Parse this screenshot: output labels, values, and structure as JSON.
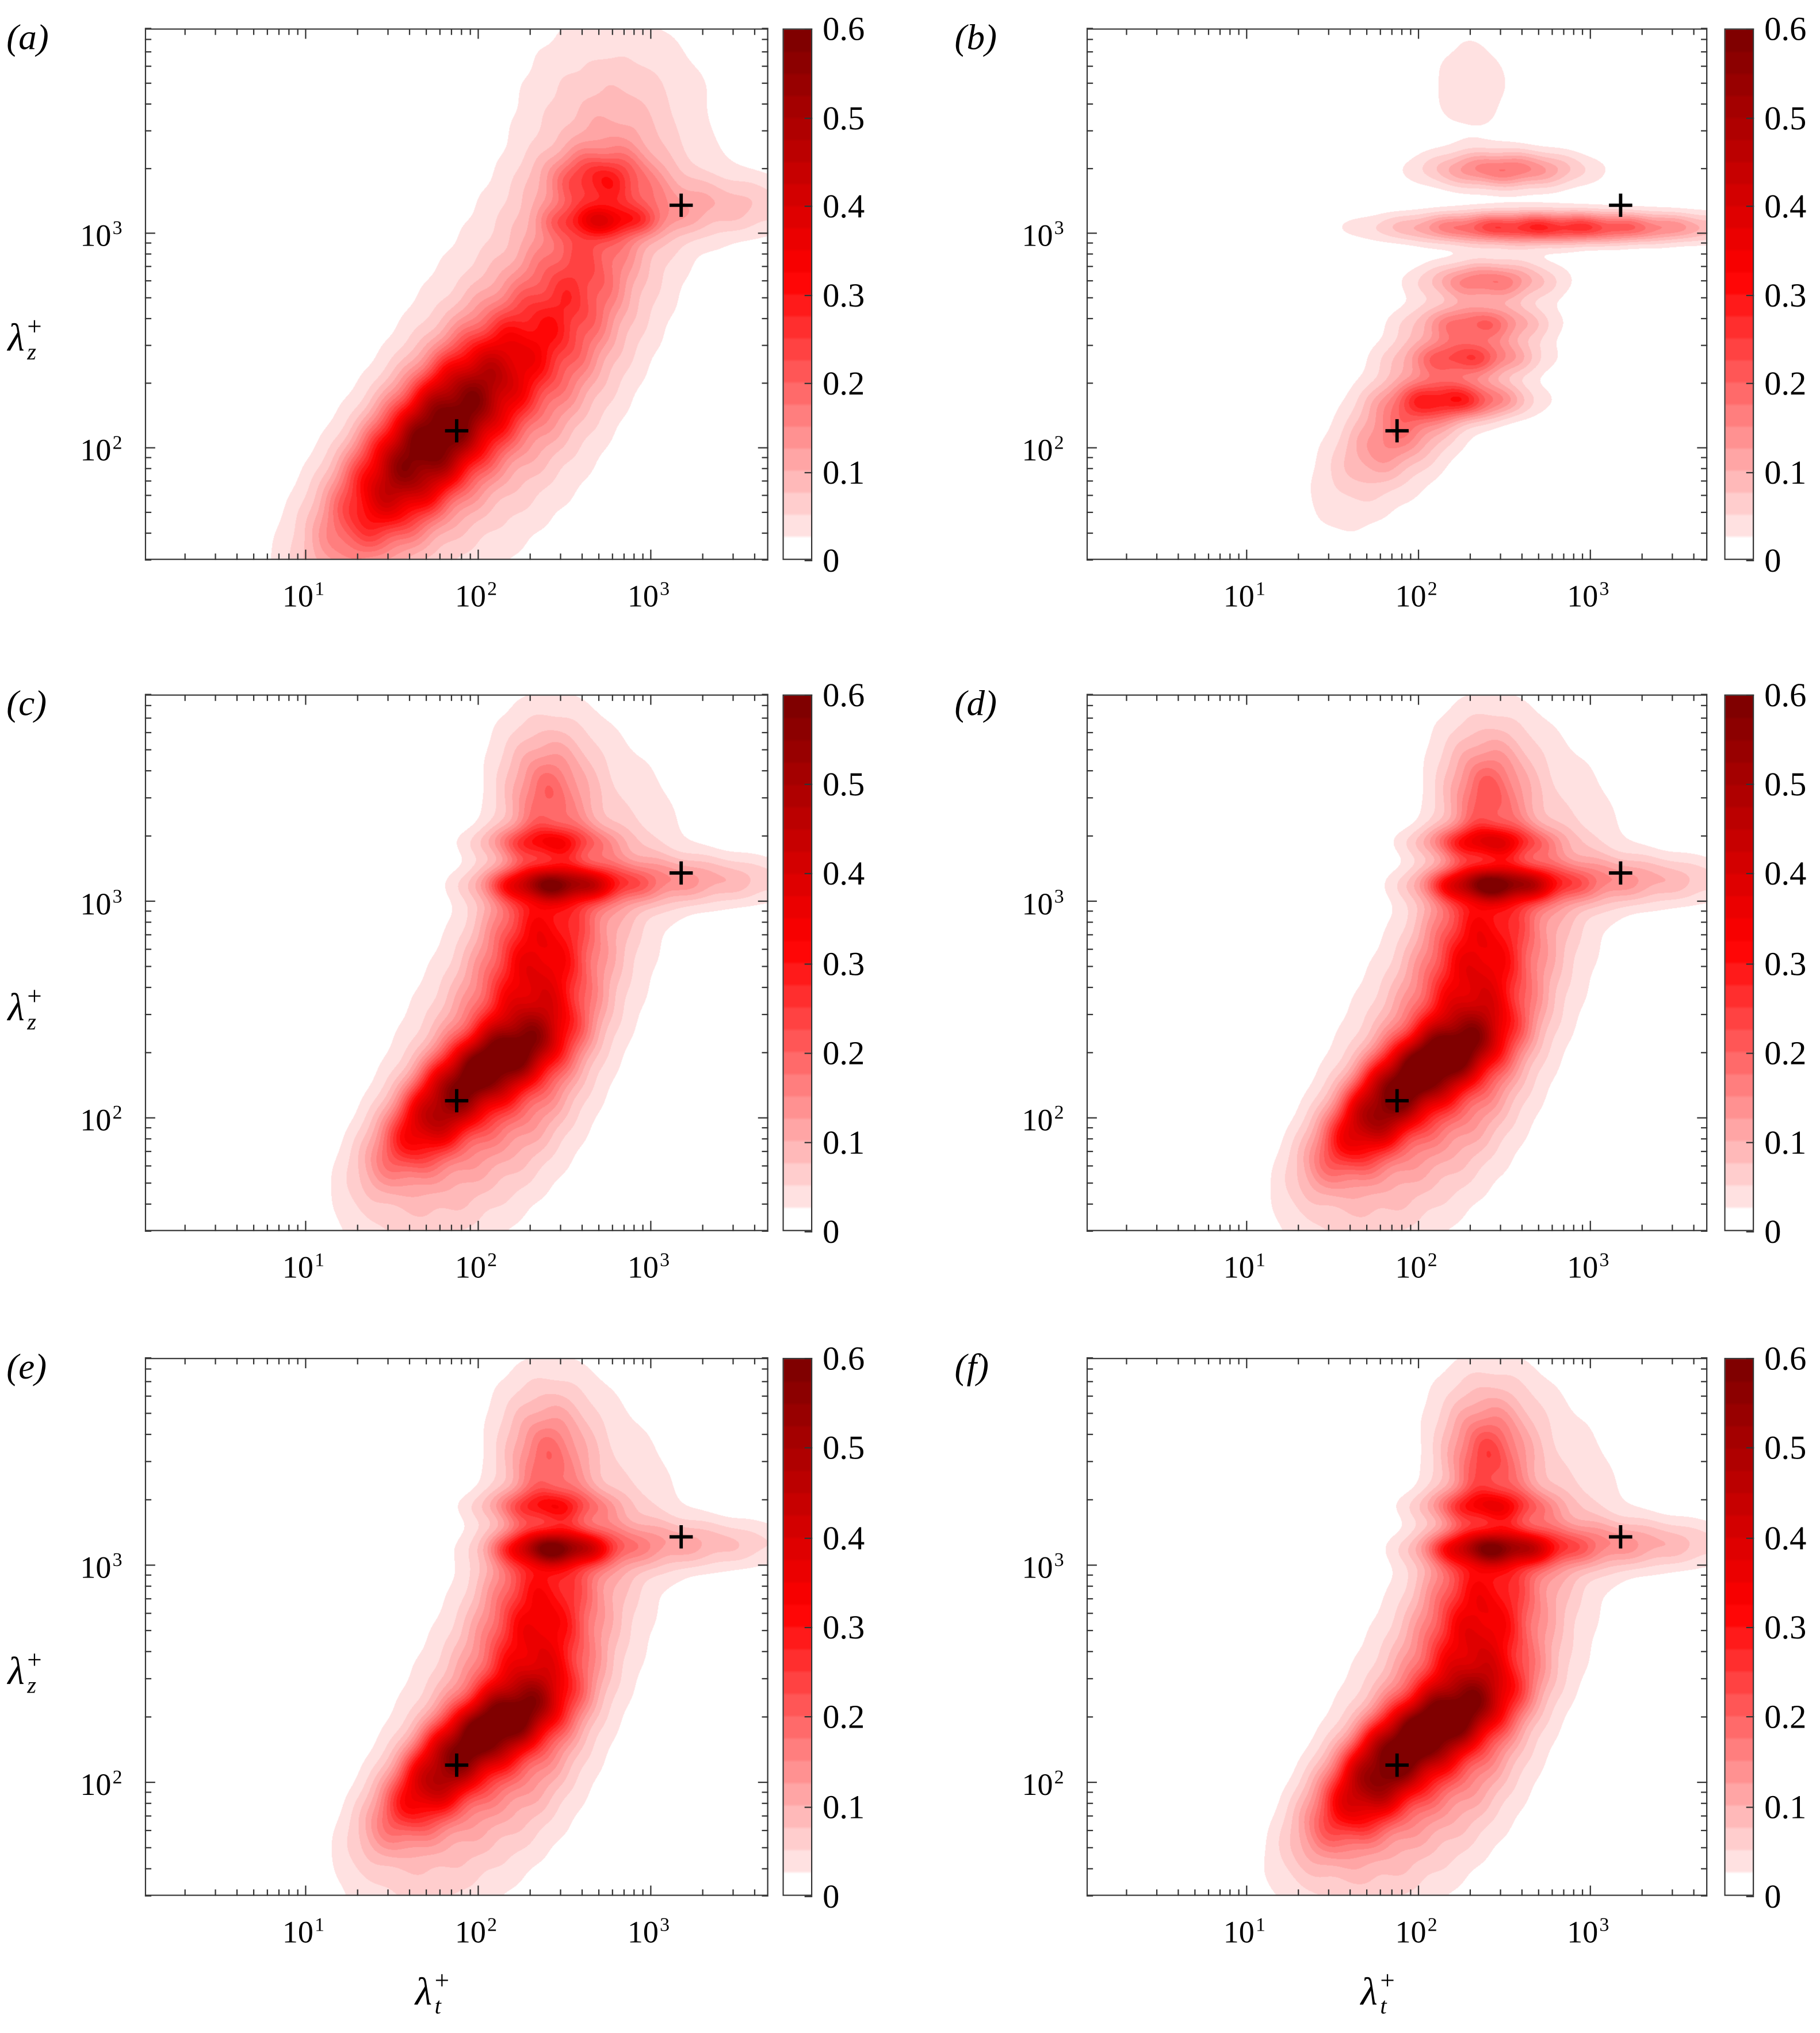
{
  "figure": {
    "panel_labels": [
      "(a)",
      "(b)",
      "(c)",
      "(d)",
      "(e)",
      "(f)"
    ],
    "ylabel": {
      "symbol": "λ",
      "sub": "z",
      "sup": "+"
    },
    "xlabel": {
      "symbol": "λ",
      "sub": "t",
      "sup": "+"
    },
    "colorbar": {
      "ticks": [
        "0",
        "0.1",
        "0.2",
        "0.3",
        "0.4",
        "0.5",
        "0.6"
      ],
      "range": [
        0,
        0.6
      ],
      "levels": 24,
      "colors": {
        "low": "#ffffff",
        "mid": "#ff0000",
        "high": "#7a0000"
      }
    },
    "x_tick_labels": [
      {
        "base": "10",
        "exp": "1"
      },
      {
        "base": "10",
        "exp": "2"
      },
      {
        "base": "10",
        "exp": "3"
      }
    ],
    "y_tick_labels": [
      {
        "base": "10",
        "exp": "2"
      },
      {
        "base": "10",
        "exp": "3"
      }
    ]
  },
  "chart_data": [
    {
      "panel": "(a)",
      "type": "heatmap",
      "style": "filled-contour",
      "x_scale": "log",
      "y_scale": "log",
      "xlim": [
        1.17,
        4800
      ],
      "ylim": [
        30,
        9000
      ],
      "zlim": [
        0,
        0.6
      ],
      "markers": [
        {
          "symbol": "+",
          "x": 75,
          "y": 120
        },
        {
          "symbol": "+",
          "x": 1500,
          "y": 1350
        }
      ],
      "peaks": [
        {
          "x": 56,
          "y": 112,
          "value": 0.55,
          "spread_x_dec": 0.45,
          "spread_y_dec": 0.17,
          "tilt_deg": 40
        },
        {
          "x": 160,
          "y": 250,
          "value": 0.12,
          "spread_x_dec": 0.9,
          "spread_y_dec": 0.35,
          "tilt_deg": 50
        },
        {
          "x": 400,
          "y": 630,
          "value": 0.12,
          "spread_x_dec": 0.5,
          "spread_y_dec": 0.2,
          "tilt_deg": 70
        },
        {
          "x": 560,
          "y": 1150,
          "value": 0.15,
          "spread_x_dec": 0.2,
          "spread_y_dec": 0.05,
          "tilt_deg": 0
        },
        {
          "x": 500,
          "y": 1860,
          "value": 0.12,
          "spread_x_dec": 0.2,
          "spread_y_dec": 0.08,
          "tilt_deg": 0
        },
        {
          "x": 2000,
          "y": 1350,
          "value": 0.08,
          "spread_x_dec": 0.5,
          "spread_y_dec": 0.1,
          "tilt_deg": 0
        },
        {
          "x": 400,
          "y": 4000,
          "value": 0.04,
          "spread_x_dec": 0.35,
          "spread_y_dec": 0.3,
          "tilt_deg": 80
        }
      ]
    },
    {
      "panel": "(b)",
      "type": "heatmap",
      "style": "filled-contour",
      "x_scale": "log",
      "y_scale": "log",
      "xlim": [
        1.17,
        4800
      ],
      "ylim": [
        30,
        9000
      ],
      "zlim": [
        0,
        0.6
      ],
      "markers": [
        {
          "symbol": "+",
          "x": 75,
          "y": 120
        },
        {
          "symbol": "+",
          "x": 1500,
          "y": 1350
        }
      ],
      "peaks": [
        {
          "x": 100,
          "y": 160,
          "value": 0.08,
          "spread_x_dec": 0.5,
          "spread_y_dec": 0.2,
          "tilt_deg": 45
        },
        {
          "x": 80,
          "y": 125,
          "value": 0.1,
          "spread_x_dec": 0.25,
          "spread_y_dec": 0.12,
          "tilt_deg": 30
        },
        {
          "x": 180,
          "y": 166,
          "value": 0.2,
          "spread_x_dec": 0.25,
          "spread_y_dec": 0.06,
          "tilt_deg": 0
        },
        {
          "x": 200,
          "y": 263,
          "value": 0.17,
          "spread_x_dec": 0.25,
          "spread_y_dec": 0.06,
          "tilt_deg": 0
        },
        {
          "x": 224,
          "y": 380,
          "value": 0.15,
          "spread_x_dec": 0.25,
          "spread_y_dec": 0.06,
          "tilt_deg": 0
        },
        {
          "x": 250,
          "y": 600,
          "value": 0.15,
          "spread_x_dec": 0.25,
          "spread_y_dec": 0.06,
          "tilt_deg": 0
        },
        {
          "x": 400,
          "y": 1070,
          "value": 0.22,
          "spread_x_dec": 0.5,
          "spread_y_dec": 0.05,
          "tilt_deg": 0
        },
        {
          "x": 2000,
          "y": 1070,
          "value": 0.1,
          "spread_x_dec": 0.5,
          "spread_y_dec": 0.05,
          "tilt_deg": 0
        },
        {
          "x": 316,
          "y": 2000,
          "value": 0.17,
          "spread_x_dec": 0.3,
          "spread_y_dec": 0.06,
          "tilt_deg": 0
        },
        {
          "x": 200,
          "y": 5000,
          "value": 0.04,
          "spread_x_dec": 0.2,
          "spread_y_dec": 0.2,
          "tilt_deg": 0
        }
      ]
    },
    {
      "panel": "(c)",
      "type": "heatmap",
      "style": "filled-contour",
      "x_scale": "log",
      "y_scale": "log",
      "xlim": [
        1.17,
        4800
      ],
      "ylim": [
        30,
        9000
      ],
      "zlim": [
        0,
        0.6
      ],
      "markers": [
        {
          "symbol": "+",
          "x": 75,
          "y": 120
        },
        {
          "symbol": "+",
          "x": 1500,
          "y": 1350
        }
      ],
      "peaks": [
        {
          "x": 63,
          "y": 112,
          "value": 0.35,
          "spread_x_dec": 0.3,
          "spread_y_dec": 0.12,
          "tilt_deg": 35
        },
        {
          "x": 141,
          "y": 190,
          "value": 0.28,
          "spread_x_dec": 0.25,
          "spread_y_dec": 0.1,
          "tilt_deg": 20
        },
        {
          "x": 160,
          "y": 250,
          "value": 0.2,
          "spread_x_dec": 0.7,
          "spread_y_dec": 0.28,
          "tilt_deg": 55
        },
        {
          "x": 224,
          "y": 560,
          "value": 0.2,
          "spread_x_dec": 0.45,
          "spread_y_dec": 0.2,
          "tilt_deg": 85
        },
        {
          "x": 282,
          "y": 1200,
          "value": 0.3,
          "spread_x_dec": 0.25,
          "spread_y_dec": 0.05,
          "tilt_deg": 0
        },
        {
          "x": 1260,
          "y": 1260,
          "value": 0.12,
          "spread_x_dec": 0.5,
          "spread_y_dec": 0.08,
          "tilt_deg": 0
        },
        {
          "x": 250,
          "y": 1900,
          "value": 0.15,
          "spread_x_dec": 0.25,
          "spread_y_dec": 0.05,
          "tilt_deg": 0
        },
        {
          "x": 250,
          "y": 3160,
          "value": 0.1,
          "spread_x_dec": 0.15,
          "spread_y_dec": 0.15,
          "tilt_deg": 0
        },
        {
          "x": 250,
          "y": 5000,
          "value": 0.05,
          "spread_x_dec": 0.2,
          "spread_y_dec": 0.25,
          "tilt_deg": 90
        }
      ]
    },
    {
      "panel": "(d)",
      "type": "heatmap",
      "style": "filled-contour",
      "x_scale": "log",
      "y_scale": "log",
      "xlim": [
        1.17,
        4800
      ],
      "ylim": [
        30,
        9000
      ],
      "zlim": [
        0,
        0.6
      ],
      "markers": [
        {
          "symbol": "+",
          "x": 75,
          "y": 120
        },
        {
          "symbol": "+",
          "x": 1500,
          "y": 1350
        }
      ],
      "peaks": [
        {
          "x": 63,
          "y": 112,
          "value": 0.4,
          "spread_x_dec": 0.3,
          "spread_y_dec": 0.12,
          "tilt_deg": 35
        },
        {
          "x": 141,
          "y": 190,
          "value": 0.3,
          "spread_x_dec": 0.25,
          "spread_y_dec": 0.1,
          "tilt_deg": 20
        },
        {
          "x": 160,
          "y": 250,
          "value": 0.2,
          "spread_x_dec": 0.7,
          "spread_y_dec": 0.28,
          "tilt_deg": 55
        },
        {
          "x": 224,
          "y": 560,
          "value": 0.2,
          "spread_x_dec": 0.45,
          "spread_y_dec": 0.2,
          "tilt_deg": 85
        },
        {
          "x": 282,
          "y": 1200,
          "value": 0.34,
          "spread_x_dec": 0.25,
          "spread_y_dec": 0.05,
          "tilt_deg": 0
        },
        {
          "x": 1260,
          "y": 1260,
          "value": 0.12,
          "spread_x_dec": 0.5,
          "spread_y_dec": 0.08,
          "tilt_deg": 0
        },
        {
          "x": 250,
          "y": 1900,
          "value": 0.2,
          "spread_x_dec": 0.25,
          "spread_y_dec": 0.05,
          "tilt_deg": 0
        },
        {
          "x": 250,
          "y": 3160,
          "value": 0.12,
          "spread_x_dec": 0.15,
          "spread_y_dec": 0.15,
          "tilt_deg": 0
        },
        {
          "x": 250,
          "y": 5000,
          "value": 0.05,
          "spread_x_dec": 0.2,
          "spread_y_dec": 0.25,
          "tilt_deg": 90
        }
      ]
    },
    {
      "panel": "(e)",
      "type": "heatmap",
      "style": "filled-contour",
      "x_scale": "log",
      "y_scale": "log",
      "xlim": [
        1.17,
        4800
      ],
      "ylim": [
        30,
        9000
      ],
      "zlim": [
        0,
        0.6
      ],
      "markers": [
        {
          "symbol": "+",
          "x": 75,
          "y": 120
        },
        {
          "symbol": "+",
          "x": 1500,
          "y": 1350
        }
      ],
      "peaks": [
        {
          "x": 63,
          "y": 112,
          "value": 0.36,
          "spread_x_dec": 0.3,
          "spread_y_dec": 0.12,
          "tilt_deg": 35
        },
        {
          "x": 141,
          "y": 190,
          "value": 0.3,
          "spread_x_dec": 0.25,
          "spread_y_dec": 0.1,
          "tilt_deg": 20
        },
        {
          "x": 160,
          "y": 250,
          "value": 0.18,
          "spread_x_dec": 0.7,
          "spread_y_dec": 0.28,
          "tilt_deg": 55
        },
        {
          "x": 224,
          "y": 560,
          "value": 0.2,
          "spread_x_dec": 0.45,
          "spread_y_dec": 0.2,
          "tilt_deg": 85
        },
        {
          "x": 282,
          "y": 1200,
          "value": 0.34,
          "spread_x_dec": 0.2,
          "spread_y_dec": 0.05,
          "tilt_deg": 0
        },
        {
          "x": 1260,
          "y": 1260,
          "value": 0.1,
          "spread_x_dec": 0.5,
          "spread_y_dec": 0.08,
          "tilt_deg": 0
        },
        {
          "x": 250,
          "y": 1900,
          "value": 0.14,
          "spread_x_dec": 0.25,
          "spread_y_dec": 0.05,
          "tilt_deg": 0
        },
        {
          "x": 250,
          "y": 3160,
          "value": 0.1,
          "spread_x_dec": 0.15,
          "spread_y_dec": 0.15,
          "tilt_deg": 0
        },
        {
          "x": 250,
          "y": 5000,
          "value": 0.05,
          "spread_x_dec": 0.2,
          "spread_y_dec": 0.25,
          "tilt_deg": 90
        }
      ]
    },
    {
      "panel": "(f)",
      "type": "heatmap",
      "style": "filled-contour",
      "x_scale": "log",
      "y_scale": "log",
      "xlim": [
        1.17,
        4800
      ],
      "ylim": [
        30,
        9000
      ],
      "zlim": [
        0,
        0.6
      ],
      "markers": [
        {
          "symbol": "+",
          "x": 75,
          "y": 120
        },
        {
          "symbol": "+",
          "x": 1500,
          "y": 1350
        }
      ],
      "peaks": [
        {
          "x": 63,
          "y": 112,
          "value": 0.42,
          "spread_x_dec": 0.32,
          "spread_y_dec": 0.13,
          "tilt_deg": 35
        },
        {
          "x": 141,
          "y": 190,
          "value": 0.26,
          "spread_x_dec": 0.3,
          "spread_y_dec": 0.1,
          "tilt_deg": 20
        },
        {
          "x": 160,
          "y": 250,
          "value": 0.2,
          "spread_x_dec": 0.7,
          "spread_y_dec": 0.28,
          "tilt_deg": 55
        },
        {
          "x": 224,
          "y": 560,
          "value": 0.2,
          "spread_x_dec": 0.45,
          "spread_y_dec": 0.2,
          "tilt_deg": 85
        },
        {
          "x": 282,
          "y": 1200,
          "value": 0.3,
          "spread_x_dec": 0.25,
          "spread_y_dec": 0.05,
          "tilt_deg": 0
        },
        {
          "x": 1260,
          "y": 1260,
          "value": 0.12,
          "spread_x_dec": 0.5,
          "spread_y_dec": 0.08,
          "tilt_deg": 0
        },
        {
          "x": 250,
          "y": 1900,
          "value": 0.16,
          "spread_x_dec": 0.25,
          "spread_y_dec": 0.05,
          "tilt_deg": 0
        },
        {
          "x": 250,
          "y": 3160,
          "value": 0.14,
          "spread_x_dec": 0.15,
          "spread_y_dec": 0.15,
          "tilt_deg": 0
        },
        {
          "x": 250,
          "y": 5000,
          "value": 0.06,
          "spread_x_dec": 0.2,
          "spread_y_dec": 0.25,
          "tilt_deg": 90
        }
      ]
    }
  ]
}
